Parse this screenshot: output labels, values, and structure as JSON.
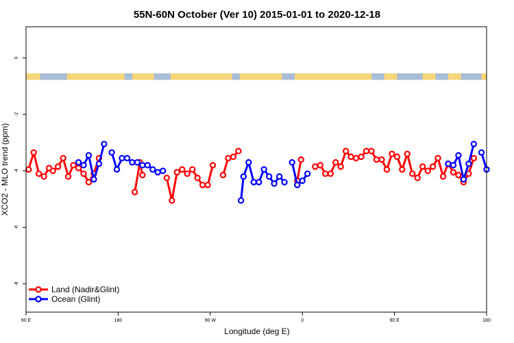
{
  "chart_data": {
    "type": "line",
    "title": "55N-60N October (Ver 10)   2015-01-01 to 2020-12-18",
    "xlabel": "Longitude (deg E)",
    "ylabel": "XCO2 - MLO trend (ppm)",
    "xlim": [
      90,
      450
    ],
    "ylim": [
      -9,
      1.1
    ],
    "x_ticks": [
      {
        "value": 90,
        "label": "90 E"
      },
      {
        "value": 162,
        "label": "180"
      },
      {
        "value": 234,
        "label": "90 W"
      },
      {
        "value": 306,
        "label": "0"
      },
      {
        "value": 378,
        "label": "90 E"
      },
      {
        "value": 450,
        "label": "180"
      }
    ],
    "y_ticks": [
      {
        "value": 0,
        "label": "0"
      },
      {
        "value": -2,
        "label": "-2"
      },
      {
        "value": -4,
        "label": "-4"
      },
      {
        "value": -6,
        "label": "-6"
      },
      {
        "value": -8,
        "label": "-8"
      }
    ],
    "grid": false,
    "legend_position": "bottom-left",
    "land_ocean_band": {
      "y_top": -0.55,
      "y_bottom": -0.78,
      "land_color": "#f5d67a",
      "ocean_color": "#a9bcd8"
    },
    "series": [
      {
        "name": "Land (Nadir&Glint)",
        "color": "#ff0000",
        "segments": [
          [
            [
              92,
              -3.95
            ],
            [
              96,
              -3.35
            ],
            [
              100,
              -4.1
            ],
            [
              104,
              -4.2
            ],
            [
              108,
              -3.9
            ],
            [
              111,
              -4.0
            ],
            [
              115,
              -3.85
            ],
            [
              119,
              -3.55
            ],
            [
              123,
              -4.2
            ],
            [
              127,
              -3.8
            ],
            [
              131,
              -3.9
            ],
            [
              135,
              -4.1
            ],
            [
              139,
              -4.4
            ],
            [
              143,
              -4.1
            ],
            [
              147,
              -3.55
            ]
          ],
          [
            [
              175,
              -4.75
            ],
            [
              179,
              -3.7
            ],
            [
              181,
              -4.15
            ]
          ],
          [
            [
              200,
              -4.25
            ],
            [
              204,
              -5.05
            ],
            [
              208,
              -4.05
            ],
            [
              212,
              -3.95
            ],
            [
              216,
              -4.1
            ],
            [
              220,
              -3.95
            ],
            [
              224,
              -4.25
            ],
            [
              228,
              -4.5
            ],
            [
              232,
              -4.5
            ],
            [
              236,
              -3.8
            ]
          ],
          [
            [
              244,
              -4.15
            ],
            [
              248,
              -3.55
            ],
            [
              252,
              -3.5
            ],
            [
              256,
              -3.3
            ]
          ],
          [
            [
              302,
              -4.35
            ],
            [
              305,
              -3.6
            ]
          ],
          [
            [
              316,
              -3.85
            ],
            [
              320,
              -3.8
            ],
            [
              324,
              -4.1
            ],
            [
              328,
              -4.1
            ],
            [
              332,
              -3.7
            ],
            [
              336,
              -3.85
            ],
            [
              340,
              -3.3
            ],
            [
              344,
              -3.5
            ],
            [
              348,
              -3.55
            ],
            [
              352,
              -3.5
            ],
            [
              356,
              -3.3
            ],
            [
              360,
              -3.3
            ],
            [
              364,
              -3.6
            ],
            [
              368,
              -3.6
            ],
            [
              372,
              -3.95
            ],
            [
              376,
              -3.4
            ],
            [
              380,
              -3.5
            ],
            [
              384,
              -3.95
            ],
            [
              388,
              -3.4
            ],
            [
              392,
              -4.1
            ],
            [
              396,
              -4.25
            ],
            [
              400,
              -3.85
            ],
            [
              404,
              -4.0
            ],
            [
              408,
              -3.85
            ],
            [
              412,
              -3.55
            ],
            [
              416,
              -4.2
            ],
            [
              420,
              -3.75
            ],
            [
              424,
              -4.05
            ],
            [
              428,
              -4.15
            ],
            [
              432,
              -4.4
            ],
            [
              436,
              -4.1
            ],
            [
              440,
              -3.55
            ]
          ]
        ]
      },
      {
        "name": "Ocean (Glint)",
        "color": "#0000ff",
        "segments": [
          [
            [
              131,
              -3.7
            ],
            [
              135,
              -3.8
            ],
            [
              139,
              -3.45
            ],
            [
              143,
              -4.3
            ],
            [
              147,
              -3.75
            ],
            [
              151,
              -3.05
            ]
          ],
          [
            [
              157,
              -3.35
            ],
            [
              161,
              -3.95
            ],
            [
              165,
              -3.55
            ],
            [
              169,
              -3.55
            ],
            [
              173,
              -3.7
            ],
            [
              177,
              -3.7
            ],
            [
              181,
              -3.8
            ],
            [
              185,
              -3.8
            ],
            [
              189,
              -3.95
            ],
            [
              193,
              -4.05
            ],
            [
              197,
              -4.0
            ]
          ],
          [
            [
              258,
              -5.05
            ],
            [
              260,
              -4.2
            ],
            [
              264,
              -3.7
            ],
            [
              268,
              -4.4
            ],
            [
              272,
              -4.4
            ],
            [
              276,
              -3.95
            ],
            [
              280,
              -4.2
            ],
            [
              284,
              -4.45
            ],
            [
              288,
              -4.2
            ],
            [
              292,
              -4.4
            ]
          ],
          [
            [
              298,
              -3.7
            ],
            [
              302,
              -4.5
            ],
            [
              306,
              -4.35
            ],
            [
              310,
              -4.1
            ]
          ],
          [
            [
              420,
              -3.75
            ],
            [
              424,
              -3.8
            ],
            [
              428,
              -3.45
            ],
            [
              432,
              -4.3
            ],
            [
              436,
              -3.75
            ],
            [
              440,
              -3.05
            ]
          ],
          [
            [
              446,
              -3.35
            ],
            [
              450,
              -3.95
            ]
          ]
        ]
      }
    ]
  }
}
